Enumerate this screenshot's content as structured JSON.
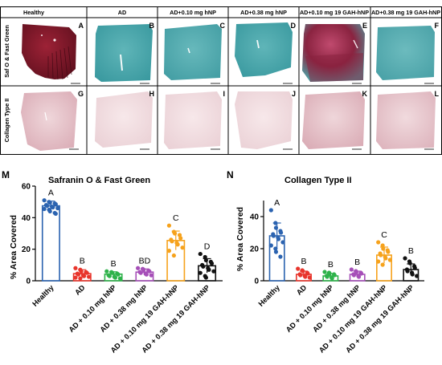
{
  "figure": {
    "columns": [
      "Healthy",
      "AD",
      "AD+0.10 mg hNP",
      "AD+0.38 mg  hNP",
      "AD+0.10 mg 19 GAH-hNP",
      "AD+0.38 mg 19 GAH-hNP"
    ],
    "row_labels": [
      "Saf O & Fast Green",
      "Collagen Type II"
    ],
    "panel_letters_row1": [
      "A",
      "B",
      "C",
      "D",
      "E",
      "F"
    ],
    "panel_letters_row2": [
      "G",
      "H",
      "I",
      "J",
      "K",
      "L"
    ]
  },
  "colors": {
    "healthy": "#2b63b0",
    "ad": "#e8352c",
    "hnp_010": "#2eb24a",
    "hnp_038": "#a64fb8",
    "gah_010": "#f6a21c",
    "gah_038": "#111111",
    "stain_red": "#8a1a2a",
    "stain_green": "#43a4a8",
    "stain_pink": "#e8c9cf"
  },
  "chart_data": [
    {
      "type": "bar",
      "panel_label": "M",
      "title": "Safranin O & Fast Green",
      "ylabel": "% Area Covered",
      "ylim": [
        0,
        60
      ],
      "yticks": [
        0,
        20,
        40,
        60
      ],
      "categories": [
        "Healthy",
        "AD",
        "AD + 0.10 mg hNP",
        "AD + 0.38 mg hNP",
        "AD + 0.10 mg 19 GAH-hNP",
        "AD + 0.38 mg 19 GAH-hNP"
      ],
      "values": [
        47.5,
        4.5,
        4.2,
        5.5,
        25.5,
        9.5
      ],
      "errors": [
        3,
        2.5,
        1.5,
        2,
        6,
        4.5
      ],
      "letters": [
        "A",
        "B",
        "B",
        "BD",
        "C",
        "D"
      ],
      "points": [
        [
          51,
          50,
          49.5,
          49,
          48.5,
          48,
          47.5,
          47,
          46.5,
          46,
          45.5,
          45,
          44,
          43,
          42.5
        ],
        [
          8,
          7,
          6,
          5.5,
          5,
          4.5,
          4,
          3.5,
          3,
          2.5,
          2,
          1.5
        ],
        [
          6,
          5.5,
          5,
          4.5,
          4,
          3.5,
          3,
          2.5,
          2,
          1.5
        ],
        [
          8,
          7.5,
          7,
          6.5,
          6,
          5.5,
          5,
          4.5,
          4,
          3.5
        ],
        [
          35,
          31,
          30,
          29,
          27,
          26,
          25,
          24,
          23,
          21,
          19,
          16
        ],
        [
          17,
          15,
          13,
          12,
          11,
          10,
          9,
          8,
          7,
          6,
          5,
          3,
          2
        ]
      ]
    },
    {
      "type": "bar",
      "panel_label": "N",
      "title": "Collagen Type II",
      "ylabel": "% Area Covered",
      "ylim": [
        0,
        50
      ],
      "yticks": [
        0,
        20,
        40
      ],
      "categories": [
        "Healthy",
        "AD",
        "AD + 0.10 mg hNP",
        "AD + 0.38 mg hNP",
        "AD + 0.10 mg 19 GAH-hNP",
        "AD + 0.38 mg 19 GAH-hNP"
      ],
      "values": [
        28,
        4,
        3,
        4,
        16,
        7
      ],
      "errors": [
        8,
        2,
        1.5,
        2,
        5,
        3.5
      ],
      "letters": [
        "A",
        "B",
        "B",
        "B",
        "C",
        "B"
      ],
      "points": [
        [
          44,
          36,
          33,
          31,
          30,
          29,
          28,
          27,
          26,
          24,
          22,
          20,
          18,
          15
        ],
        [
          7.5,
          6.5,
          6,
          5,
          4.5,
          4,
          3.5,
          3,
          2.5,
          2
        ],
        [
          5.5,
          5,
          4.5,
          4,
          3.5,
          3,
          2.5,
          2,
          1.5
        ],
        [
          7,
          6,
          5.5,
          5,
          4.5,
          4,
          3.5,
          3,
          2.5
        ],
        [
          24,
          22,
          20,
          19,
          18,
          17,
          16,
          15,
          14,
          13,
          12,
          10
        ],
        [
          14,
          12,
          11,
          9,
          8,
          7,
          6,
          5,
          4,
          3
        ]
      ]
    }
  ]
}
